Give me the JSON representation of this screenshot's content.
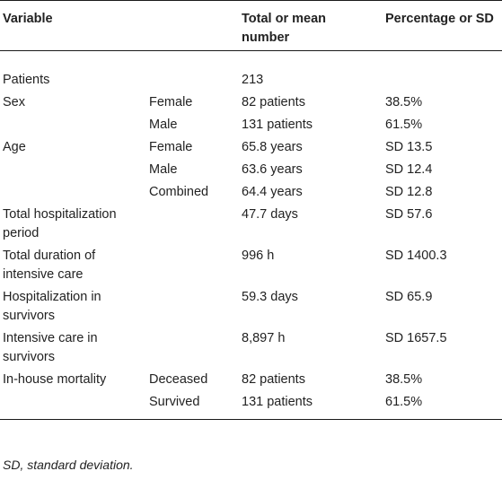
{
  "headers": [
    "Variable",
    "",
    "Total or mean number",
    "Percentage or SD"
  ],
  "rows": [
    [
      "Patients",
      "",
      "213",
      ""
    ],
    [
      "Sex",
      "Female",
      "82 patients",
      "38.5%"
    ],
    [
      "",
      "Male",
      "131 patients",
      "61.5%"
    ],
    [
      "Age",
      "Female",
      "65.8 years",
      "SD 13.5"
    ],
    [
      "",
      "Male",
      "63.6 years",
      "SD 12.4"
    ],
    [
      "",
      "Combined",
      "64.4 years",
      "SD 12.8"
    ],
    [
      "Total hospitalization period",
      "",
      "47.7 days",
      "SD 57.6"
    ],
    [
      "Total duration of intensive care",
      "",
      "996 h",
      "SD 1400.3"
    ],
    [
      "Hospitalization in survivors",
      "",
      "59.3 days",
      "SD 65.9"
    ],
    [
      "Intensive care in survivors",
      "",
      "8,897 h",
      "SD 1657.5"
    ],
    [
      "In-house mortality",
      "Deceased",
      "82 patients",
      "38.5%"
    ],
    [
      "",
      "Survived",
      "131 patients",
      "61.5%"
    ]
  ],
  "footnote": "SD, standard deviation."
}
